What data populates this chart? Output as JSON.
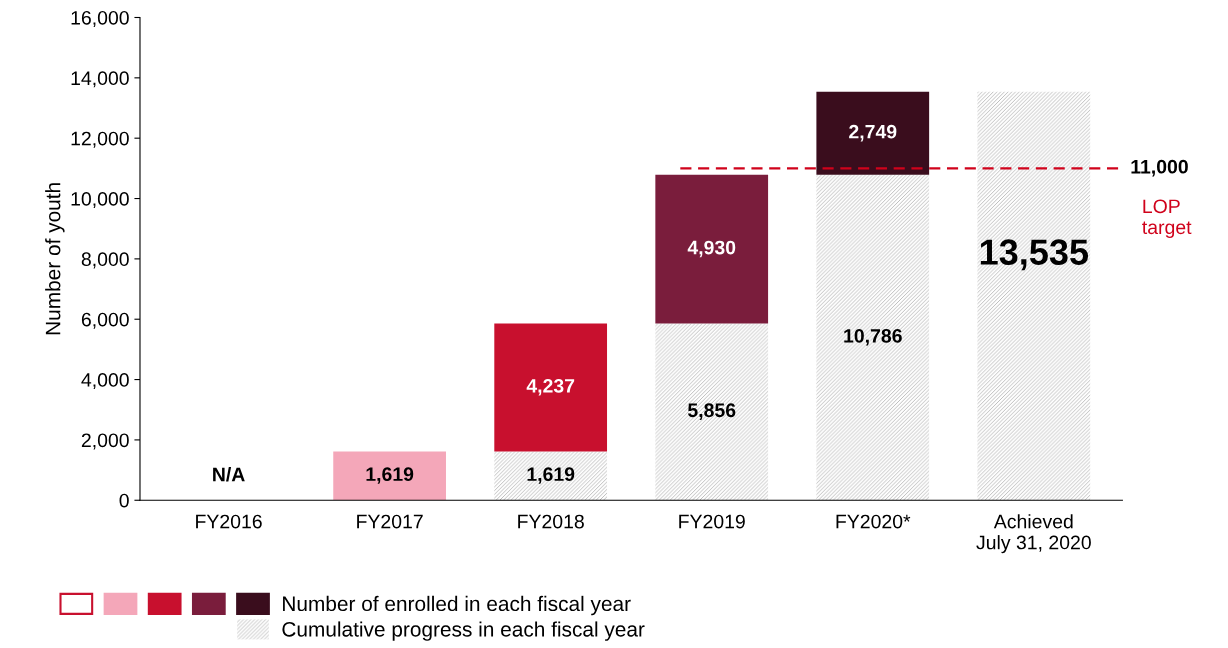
{
  "chart_data": {
    "type": "bar",
    "stacked": true,
    "ylabel": "Number of youth",
    "categories": [
      "FY2016",
      "FY2017",
      "FY2018",
      "FY2019",
      "FY2020*",
      "Achieved\nJuly 31, 2020"
    ],
    "series": [
      {
        "name": "Cumulative progress in each fiscal year",
        "color": "#b0b0b0",
        "values": [
          null,
          null,
          1619,
          5856,
          10786,
          13535
        ],
        "value_labels": [
          null,
          null,
          "1,619",
          "5,856",
          "10,786",
          "13,535"
        ]
      },
      {
        "name": "Number of enrolled in each fiscal year",
        "colors": [
          "#ffffff",
          "#f4a7b9",
          "#c8102e",
          "#7a1d3c",
          "#3a0d1d",
          "#3a0d1d"
        ],
        "values": [
          null,
          1619,
          4237,
          4930,
          2749,
          null
        ],
        "value_labels": [
          "N/A",
          "1,619",
          "4,237",
          "4,930",
          "2,749",
          null
        ]
      }
    ],
    "ylim": [
      0,
      16000
    ],
    "yticks": [
      0,
      {
        "value": 2000,
        "label": "2,000"
      },
      {
        "value": 4000,
        "label": "4,000"
      },
      {
        "value": 6000,
        "label": "6,000"
      },
      {
        "value": 8000,
        "label": "8,000"
      },
      {
        "value": 10000,
        "label": "10,000"
      },
      {
        "value": 12000,
        "label": "12,000"
      },
      {
        "value": 14000,
        "label": "14,000"
      },
      {
        "value": 16000,
        "label": "16,000"
      }
    ],
    "ref_lines": [
      {
        "axis": "y",
        "value": 11000,
        "label": "11,000",
        "color": "#d0021b",
        "line_style": "dashed"
      }
    ],
    "annotations": [
      "LOP target"
    ],
    "grid": false,
    "legend": "bottom"
  }
}
